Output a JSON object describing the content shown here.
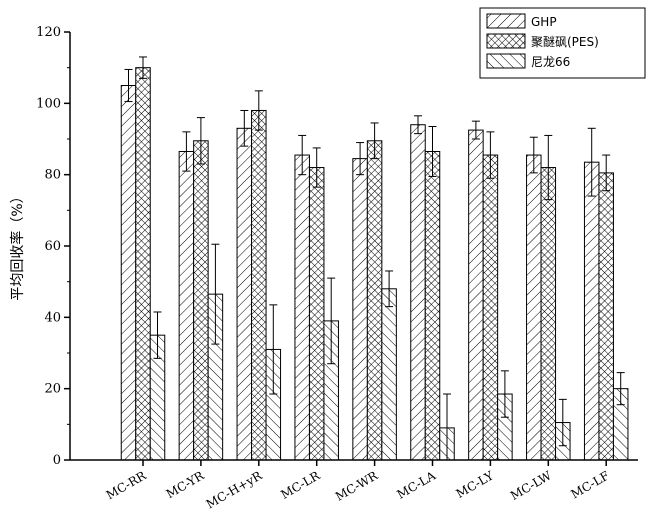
{
  "chart_data": {
    "type": "bar",
    "ylabel": "平均回收率（%）",
    "xlabel": "",
    "ylim": [
      0,
      120
    ],
    "yticks": [
      0,
      20,
      40,
      60,
      80,
      100,
      120
    ],
    "legend_position": "top-right",
    "grid": false,
    "categories": [
      "MC-RR",
      "MC-YR",
      "MC-H+yR",
      "MC-LR",
      "MC-WR",
      "MC-LA",
      "MC-LY",
      "MC-LW",
      "MC-LF"
    ],
    "series": [
      {
        "name": "GHP",
        "pattern": "diagonal-forward",
        "values": [
          105,
          86.5,
          93,
          85.5,
          84.5,
          94,
          92.5,
          85.5,
          83.5
        ],
        "errors": [
          4.5,
          5.5,
          5,
          5.5,
          4.5,
          2.5,
          2.5,
          5,
          9.5
        ]
      },
      {
        "name": "聚醚砜(PES)",
        "pattern": "crosshatch",
        "values": [
          110,
          89.5,
          98,
          82,
          89.5,
          86.5,
          85.5,
          82,
          80.5
        ],
        "errors": [
          3,
          6.5,
          5.5,
          5.5,
          5,
          7,
          6.5,
          9,
          5
        ]
      },
      {
        "name": "尼龙66",
        "pattern": "diagonal-backward",
        "values": [
          35,
          46.5,
          31,
          39,
          48,
          9,
          18.5,
          10.5,
          20
        ],
        "errors": [
          6.5,
          14,
          12.5,
          12,
          5,
          9.5,
          6.5,
          6.5,
          4.5
        ]
      }
    ]
  }
}
